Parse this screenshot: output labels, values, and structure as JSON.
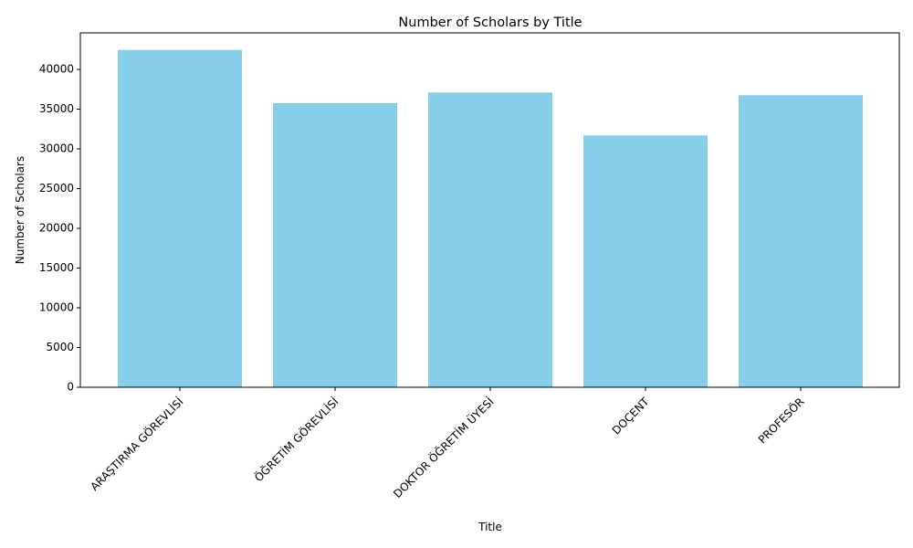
{
  "chart_data": {
    "type": "bar",
    "title": "Number of Scholars by Title",
    "xlabel": "Title",
    "ylabel": "Number of Scholars",
    "categories": [
      "ARAŞTIRMA GÖREVLİSİ",
      "ÖĞRETİM GÖREVLİSİ",
      "DOKTOR ÖĞRETİM ÜYESİ",
      "DOÇENT",
      "PROFESÖR"
    ],
    "values": [
      42450,
      35750,
      37100,
      31700,
      36750
    ],
    "ylim": [
      0,
      44600
    ],
    "yticks": [
      0,
      5000,
      10000,
      15000,
      20000,
      25000,
      30000,
      35000,
      40000
    ],
    "bar_color": "#87CEEB",
    "grid": false,
    "legend": "none"
  }
}
